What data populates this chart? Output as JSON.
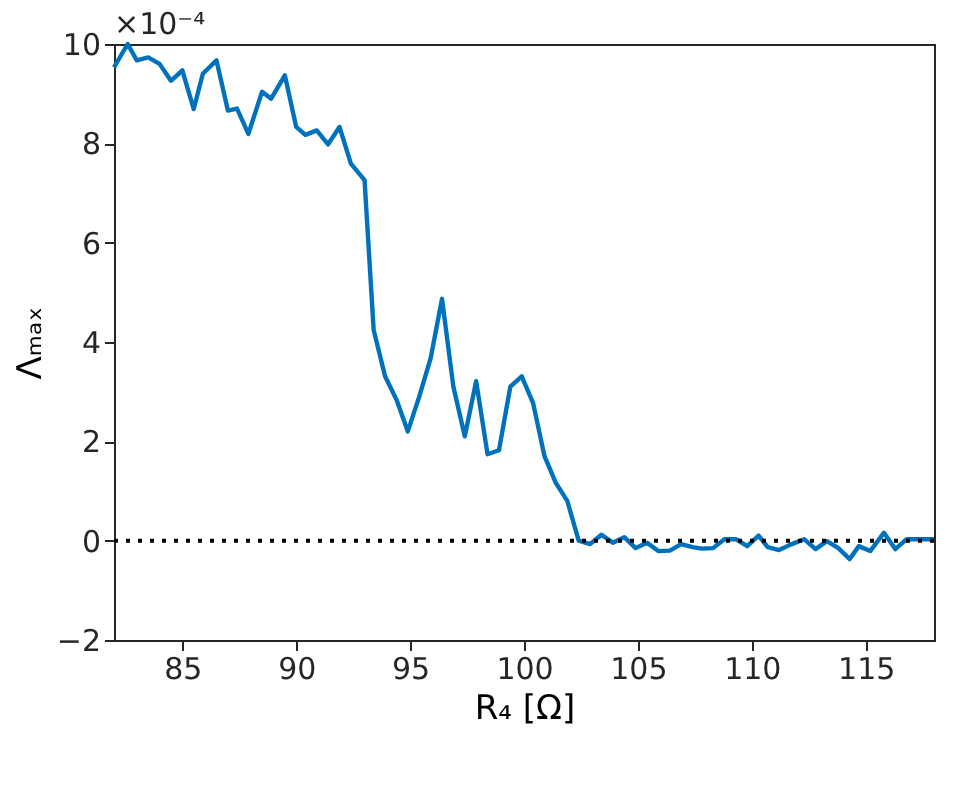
{
  "chart_data": {
    "type": "line",
    "xlabel": "R₄ [Ω]",
    "ylabel": "Λₘₐₓ",
    "annotations": [
      "×10⁻⁴"
    ],
    "x": [
      82,
      82.6,
      83.0,
      83.5,
      84.0,
      84.5,
      85.0,
      85.5,
      85.9,
      86.5,
      87.0,
      87.4,
      87.9,
      88.5,
      88.9,
      89.5,
      90.0,
      90.4,
      90.9,
      91.4,
      91.9,
      92.4,
      93.0,
      93.4,
      93.9,
      94.4,
      94.9,
      95.4,
      95.9,
      96.4,
      96.9,
      97.4,
      97.9,
      98.4,
      98.9,
      99.4,
      99.9,
      100.4,
      100.9,
      101.4,
      101.9,
      102.4,
      102.9,
      103.4,
      103.9,
      104.4,
      104.9,
      105.4,
      105.9,
      106.4,
      106.9,
      107.4,
      107.8,
      108.3,
      108.8,
      109.3,
      109.8,
      110.3,
      110.7,
      111.2,
      111.7,
      112.3,
      112.8,
      113.3,
      113.8,
      114.3,
      114.7,
      115.2,
      115.8,
      116.3,
      116.8,
      117.5,
      118
    ],
    "series": [
      {
        "color": "#0072bd",
        "values": [
          9.53,
          10.0,
          9.67,
          9.73,
          9.6,
          9.26,
          9.47,
          8.69,
          9.4,
          9.67,
          8.66,
          8.7,
          8.19,
          9.04,
          8.9,
          9.37,
          8.33,
          8.17,
          8.26,
          7.98,
          8.33,
          7.59,
          7.26,
          4.24,
          3.31,
          2.84,
          2.2,
          2.9,
          3.67,
          4.87,
          3.1,
          2.1,
          3.21,
          1.74,
          1.82,
          3.1,
          3.31,
          2.77,
          1.7,
          1.16,
          0.8,
          0.0,
          -0.07,
          0.12,
          -0.04,
          0.07,
          -0.15,
          -0.04,
          -0.21,
          -0.2,
          -0.07,
          -0.13,
          -0.16,
          -0.15,
          0.03,
          0.03,
          -0.11,
          0.1,
          -0.13,
          -0.19,
          -0.08,
          0.03,
          -0.17,
          -0.01,
          -0.15,
          -0.37,
          -0.11,
          -0.21,
          0.16,
          -0.17,
          0.03,
          0.03,
          0.03
        ]
      }
    ],
    "xlim": [
      82,
      118
    ],
    "xticks": [
      85,
      90,
      95,
      100,
      105,
      110,
      115
    ],
    "ylim": [
      -2,
      10
    ],
    "yticks": [
      -2,
      0,
      2,
      4,
      6,
      8,
      10
    ],
    "ref_lines": [
      {
        "axis": "y",
        "value": 0,
        "color": "#000000",
        "line_style": "dotted"
      }
    ],
    "grid": false,
    "line_style": "solid"
  }
}
